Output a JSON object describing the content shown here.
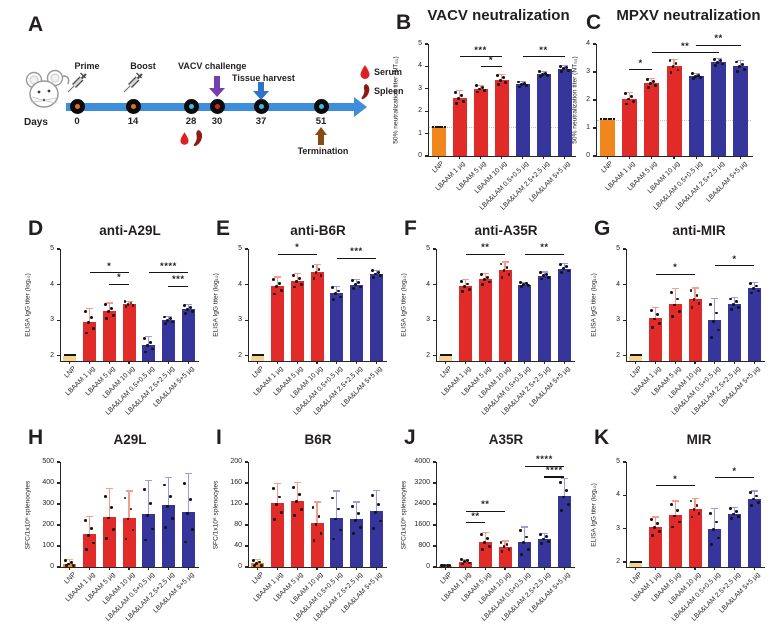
{
  "x_categories": [
    "LNP",
    "LBAAM 1 µg",
    "LBAAM 5 µg",
    "LBAAM 10 µg",
    "LBA&LAM 0.5+0.5 µg",
    "LBA&LAM 2.5+2.5 µg",
    "LBA&LAM 5+5 µg"
  ],
  "colors": {
    "lnp_bright": "#F0861C",
    "lnp_pale": "#F6D28F",
    "red": "#E12B28",
    "blue": "#35359B",
    "err_orange": "#F5B878",
    "err_red": "#F59E8E",
    "err_blue": "#9D9DDD",
    "dot": "#141414",
    "axis": "#262626",
    "baseline_line": "#C4C4C4",
    "timeline": "#3E8EDB",
    "challenge_arrow": "#7440B0",
    "harvest_arrow": "#2E74C9",
    "termination_arrow": "#8A4A16",
    "serum": "#E02020",
    "spleen": "#8C1A13"
  },
  "panel_a": {
    "label": "A",
    "days_label": "Days",
    "events": {
      "prime": "Prime",
      "boost": "Boost",
      "challenge": "VACV challenge",
      "harvest": "Tissue harvest",
      "termination": "Termination"
    },
    "legend": {
      "serum": "Serum",
      "spleen": "Spleen"
    },
    "timeline": [
      {
        "day": "0",
        "marker_color": "#E2711D"
      },
      {
        "day": "14",
        "marker_color": "#E2711D"
      },
      {
        "day": "28",
        "marker_color": "#3FB9E5"
      },
      {
        "day": "30",
        "marker_color": "#D42127"
      },
      {
        "day": "37",
        "marker_color": "#3FB9E5"
      },
      {
        "day": "51",
        "marker_color": "#3FB9E5"
      }
    ]
  },
  "chart_data": [
    {
      "panel": "B",
      "type": "bar",
      "title": "VACV neutralization",
      "ylabel": "50% neutralization titer (NT₅₀)",
      "ylim": [
        0,
        5
      ],
      "yticks": [
        0,
        1,
        2,
        3,
        4,
        5
      ],
      "baseline": 1.3,
      "lnp_style": "bright",
      "lnp_dash": true,
      "bw": 14,
      "values": [
        1.3,
        2.6,
        3.0,
        3.4,
        3.2,
        3.65,
        3.9
      ],
      "errors": [
        0.06,
        0.35,
        0.18,
        0.28,
        0.15,
        0.15,
        0.15
      ],
      "sig": [
        {
          "a": 1,
          "b": 3,
          "label": "***",
          "y": 4.45
        },
        {
          "a": 2,
          "b": 3,
          "label": "*",
          "y": 4.0
        },
        {
          "a": 4,
          "b": 6,
          "label": "**",
          "y": 4.45
        }
      ]
    },
    {
      "panel": "C",
      "type": "bar",
      "title": "MPXV neutralization",
      "ylabel": "50% neutralization titer (NT₅₀)",
      "ylim": [
        0,
        4
      ],
      "yticks": [
        0,
        1,
        2,
        3,
        4
      ],
      "baseline": 1.3,
      "lnp_style": "bright",
      "lnp_dash": true,
      "bw": 15,
      "ylx": 4,
      "values": [
        1.3,
        2.05,
        2.6,
        3.2,
        2.85,
        3.35,
        3.2
      ],
      "errors": [
        0.04,
        0.25,
        0.2,
        0.28,
        0.12,
        0.15,
        0.22
      ],
      "sig": [
        {
          "a": 1,
          "b": 2,
          "label": "*",
          "y": 3.1
        },
        {
          "a": 2,
          "b": 5,
          "label": "**",
          "y": 3.7
        },
        {
          "a": 4,
          "b": 6,
          "label": "**",
          "y": 3.97
        }
      ]
    },
    {
      "panel": "D",
      "type": "bar",
      "title": "anti-A29L",
      "ylabel": "ELISA IgG titer (log₁₀)",
      "ylim": [
        1.85,
        5
      ],
      "yticks": [
        2,
        3,
        4,
        5
      ],
      "lnp_style": "pale",
      "lnp_dash": true,
      "values": [
        2.0,
        2.95,
        3.25,
        3.45,
        2.3,
        3.0,
        3.3
      ],
      "errors": [
        0,
        0.4,
        0.25,
        0.1,
        0.25,
        0.12,
        0.15
      ],
      "sig": [
        {
          "a": 1,
          "b": 3,
          "label": "*",
          "y": 4.35
        },
        {
          "a": 2,
          "b": 3,
          "label": "*",
          "y": 4.02
        },
        {
          "a": 4,
          "b": 6,
          "label": "****",
          "y": 4.35
        },
        {
          "a": 5,
          "b": 6,
          "label": "***",
          "y": 3.97
        }
      ]
    },
    {
      "panel": "E",
      "type": "bar",
      "title": "anti-B6R",
      "ylabel": "ELISA IgG titer (log₁₀)",
      "ylim": [
        1.85,
        5
      ],
      "yticks": [
        2,
        3,
        4,
        5
      ],
      "lnp_style": "pale",
      "lnp_dash": true,
      "values": [
        2.0,
        3.95,
        4.1,
        4.35,
        3.75,
        4.0,
        4.3
      ],
      "errors": [
        0,
        0.28,
        0.22,
        0.22,
        0.22,
        0.15,
        0.12
      ],
      "sig": [
        {
          "a": 1,
          "b": 3,
          "label": "*",
          "y": 4.87
        },
        {
          "a": 4,
          "b": 6,
          "label": "***",
          "y": 4.75
        }
      ]
    },
    {
      "panel": "F",
      "type": "bar",
      "title": "anti-A35R",
      "ylabel": "ELISA IgG titer (log₁₀)",
      "ylim": [
        1.85,
        5
      ],
      "yticks": [
        2,
        3,
        4,
        5
      ],
      "lnp_style": "pale",
      "lnp_dash": true,
      "values": [
        2.0,
        3.95,
        4.15,
        4.4,
        4.0,
        4.25,
        4.45
      ],
      "errors": [
        0,
        0.2,
        0.18,
        0.25,
        0.08,
        0.12,
        0.15
      ],
      "sig": [
        {
          "a": 1,
          "b": 3,
          "label": "**",
          "y": 4.87
        },
        {
          "a": 4,
          "b": 6,
          "label": "**",
          "y": 4.87
        }
      ]
    },
    {
      "panel": "G",
      "type": "bar",
      "title": "anti-MIR",
      "ylabel": "ELISA IgG titer (log₁₀)",
      "ylim": [
        1.85,
        5
      ],
      "yticks": [
        2,
        3,
        4,
        5
      ],
      "lnp_style": "pale",
      "lnp_dash": true,
      "values": [
        2.0,
        3.05,
        3.45,
        3.6,
        3.0,
        3.45,
        3.9
      ],
      "errors": [
        0,
        0.32,
        0.45,
        0.32,
        0.62,
        0.2,
        0.18
      ],
      "sig": [
        {
          "a": 1,
          "b": 3,
          "label": "*",
          "y": 4.3
        },
        {
          "a": 4,
          "b": 6,
          "label": "*",
          "y": 4.55
        }
      ]
    },
    {
      "panel": "H",
      "type": "bar",
      "title": "A29L",
      "ylabel": "SFC/1x10⁶ splenocytes",
      "ylim": [
        0,
        500
      ],
      "yticks": [
        0,
        100,
        200,
        300,
        400,
        500
      ],
      "lnp_style": "bright",
      "lnp_dash": false,
      "values": [
        15,
        155,
        240,
        235,
        253,
        293,
        263
      ],
      "errors": [
        22,
        90,
        135,
        130,
        160,
        135,
        185
      ],
      "sig": []
    },
    {
      "panel": "I",
      "type": "bar",
      "title": "B6R",
      "ylabel": "SFC/1x10⁶ splenocytes",
      "ylim": [
        0,
        200
      ],
      "yticks": [
        0,
        40,
        80,
        120,
        160,
        200
      ],
      "lnp_style": "bright",
      "lnp_dash": false,
      "values": [
        7,
        121,
        126,
        83,
        94,
        91,
        106
      ],
      "errors": [
        8,
        39,
        36,
        42,
        52,
        34,
        41
      ],
      "sig": []
    },
    {
      "panel": "J",
      "type": "bar",
      "title": "A35R",
      "ylabel": "SFC/1x10⁶ splenocytes",
      "ylim": [
        0,
        4000
      ],
      "yticks": [
        0,
        800,
        1600,
        2400,
        3200,
        4000
      ],
      "lnp_style": "bright",
      "lnp_dash": false,
      "values": [
        30,
        200,
        950,
        780,
        950,
        1080,
        2700
      ],
      "errors": [
        25,
        110,
        380,
        230,
        600,
        230,
        700
      ],
      "sig": [
        {
          "a": 1,
          "b": 2,
          "label": "**",
          "y": 1700
        },
        {
          "a": 1,
          "b": 3,
          "label": "**",
          "y": 2150
        },
        {
          "a": 5,
          "b": 6,
          "label": "****",
          "y": 3450
        },
        {
          "a": 4,
          "b": 6,
          "label": "****",
          "y": 3850
        }
      ]
    },
    {
      "panel": "K",
      "type": "bar",
      "title": "MIR",
      "ylabel": "ELISA IgG titer (log₁₀)",
      "ylim": [
        1.85,
        5
      ],
      "yticks": [
        2,
        3,
        4,
        5
      ],
      "lnp_style": "pale",
      "lnp_dash": true,
      "values": [
        2.0,
        3.05,
        3.4,
        3.6,
        3.0,
        3.45,
        3.9
      ],
      "errors": [
        0,
        0.32,
        0.45,
        0.32,
        0.62,
        0.2,
        0.25
      ],
      "sig": [
        {
          "a": 1,
          "b": 3,
          "label": "*",
          "y": 4.3
        },
        {
          "a": 4,
          "b": 6,
          "label": "*",
          "y": 4.55
        }
      ]
    }
  ]
}
